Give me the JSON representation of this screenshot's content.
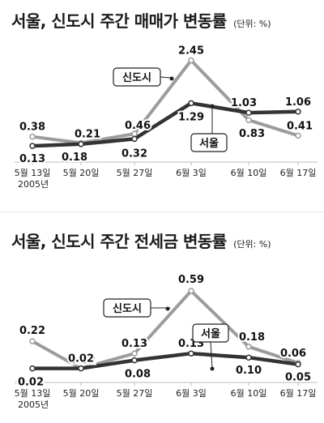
{
  "chart_data": [
    {
      "type": "line",
      "title": "서울, 신도시 주간 매매가 변동률",
      "unit": "(단위: %)",
      "categories": [
        "5월 13일",
        "5월 20일",
        "5월 27일",
        "6월 3일",
        "6월 10일",
        "6월 17일"
      ],
      "year_label": "2005년",
      "grid": false,
      "series": [
        {
          "name": "신도시",
          "values": [
            0.38,
            0.21,
            0.46,
            2.45,
            0.83,
            0.41
          ],
          "color": "#9c9c9c"
        },
        {
          "name": "서울",
          "values": [
            0.13,
            0.18,
            0.32,
            1.29,
            1.03,
            1.06
          ],
          "color": "#333333"
        }
      ],
      "data_labels": [
        [
          "0.38",
          "0.21",
          "0.46",
          "2.45",
          "0.83",
          "0.41"
        ],
        [
          "0.13",
          "0.18",
          "0.32",
          "1.29",
          "1.03",
          "1.06"
        ]
      ]
    },
    {
      "type": "line",
      "title": "서울, 신도시 주간 전세금 변동률",
      "unit": "(단위: %)",
      "categories": [
        "5월 13일",
        "5월 20일",
        "5월 27일",
        "6월 3일",
        "6월 10일",
        "6월 17일"
      ],
      "year_label": "2005년",
      "grid": false,
      "series": [
        {
          "name": "신도시",
          "values": [
            0.22,
            0.02,
            0.13,
            0.59,
            0.18,
            0.06
          ],
          "color": "#9c9c9c"
        },
        {
          "name": "서울",
          "values": [
            0.02,
            0.02,
            0.08,
            0.13,
            0.1,
            0.05
          ],
          "color": "#333333"
        }
      ],
      "data_labels": [
        [
          "0.22",
          "0.02",
          "0.13",
          "0.59",
          "0.18",
          "0.06"
        ],
        [
          "0.02",
          "0.02",
          "0.08",
          "0.13",
          "0.10",
          "0.05"
        ]
      ]
    }
  ]
}
